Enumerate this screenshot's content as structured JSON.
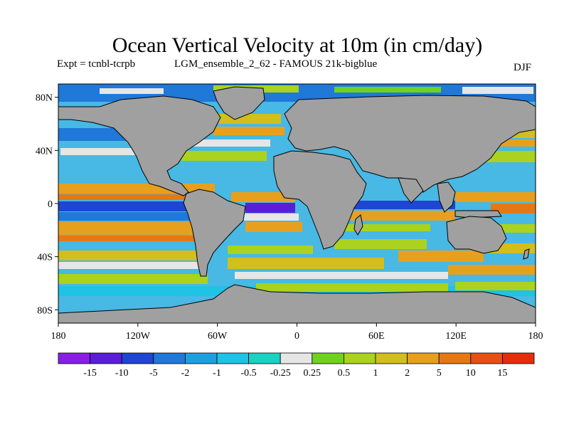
{
  "title": "Ocean Vertical Velocity at 10m (in cm/day)",
  "experiment": "Expt = tcnbl-tcrpb",
  "run_name": "LGM_ensemble_2_62 - FAMOUS 21k-bigblue",
  "season": "DJF",
  "map": {
    "lat_labels": [
      "80N",
      "40N",
      "0",
      "40S",
      "80S"
    ],
    "lat_values": [
      80,
      40,
      0,
      -40,
      -80
    ],
    "lon_labels": [
      "180",
      "120W",
      "60W",
      "0",
      "60E",
      "120E",
      "180"
    ],
    "lon_values": [
      -180,
      -120,
      -60,
      0,
      60,
      120,
      180
    ],
    "land_color": "#a0a0a0",
    "ocean_base_color": "#48b8e4"
  },
  "colorbar": {
    "labels": [
      "-15",
      "-10",
      "-5",
      "-2",
      "-1",
      "-0.5",
      "-0.25",
      "0.25",
      "0.5",
      "1",
      "2",
      "5",
      "10",
      "15"
    ],
    "colors": [
      "#8a1ee6",
      "#5a1ed8",
      "#1e46d2",
      "#2078d8",
      "#1ea0e0",
      "#1ec3e6",
      "#18d2c3",
      "#e6e6e6",
      "#6ed21e",
      "#aad21e",
      "#d2be1e",
      "#e6a01e",
      "#e67814",
      "#e65014",
      "#e62d0a"
    ]
  }
}
